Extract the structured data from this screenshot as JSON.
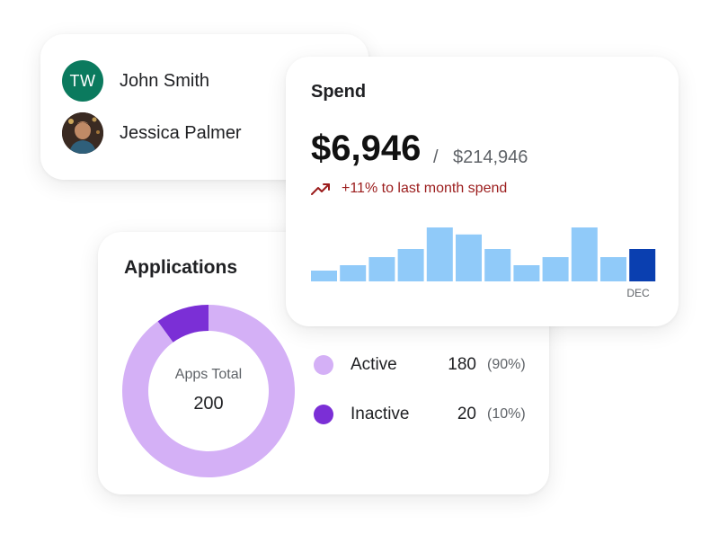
{
  "users": [
    {
      "name": "John Smith",
      "initials": "TW",
      "avatar_color": "#0b7a5e"
    },
    {
      "name": "Jessica Palmer",
      "initials": "",
      "avatar_color": "#3a2a22"
    }
  ],
  "applications": {
    "title": "Applications",
    "center_label": "Apps Total",
    "center_value": "200",
    "legend": [
      {
        "label": "Active",
        "count": "180",
        "pct": "(90%)",
        "color": "#d4b0f6"
      },
      {
        "label": "Inactive",
        "count": "20",
        "pct": "(10%)",
        "color": "#7b2fd6"
      }
    ]
  },
  "spend": {
    "title": "Spend",
    "amount": "$6,946",
    "separator": "/",
    "total": "$214,946",
    "trend_text": "+11% to last month spend",
    "trend_color": "#9b1c1c",
    "last_month_label": "DEC",
    "bar_color": "#90caf9",
    "highlight_color": "#0a3fb0"
  },
  "chart_data": {
    "type": "bar",
    "categories": [
      "",
      "",
      "",
      "",
      "",
      "",
      "",
      "",
      "",
      "",
      "",
      "DEC"
    ],
    "values": [
      2,
      3,
      4.5,
      6,
      10,
      8.7,
      6,
      3,
      4.5,
      10,
      4.5,
      6
    ],
    "highlight_index": 11,
    "ylim": [
      0,
      10
    ]
  }
}
